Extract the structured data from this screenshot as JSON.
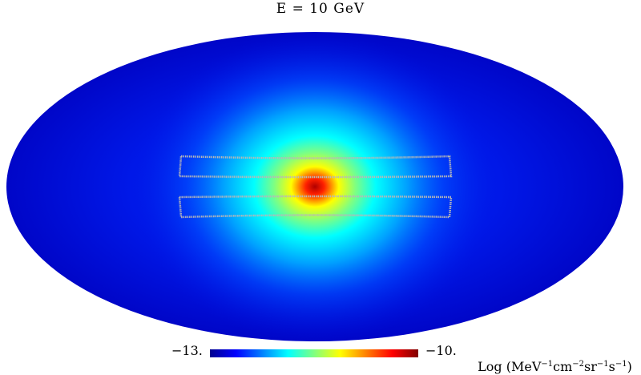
{
  "chart_data": {
    "type": "heatmap",
    "projection": "mollweide",
    "title": "E = 10 GeV",
    "colormap": "jet",
    "colorbar": {
      "min_label": "−13.",
      "max_label": "−10.",
      "unit": {
        "prefix": "Log (",
        "parts": [
          {
            "base": "MeV",
            "exp": "−1"
          },
          {
            "base": "cm",
            "exp": "−2"
          },
          {
            "base": "sr",
            "exp": "−1"
          },
          {
            "base": "s",
            "exp": "−1"
          }
        ],
        "suffix": ")"
      },
      "colors": [
        "#00008f",
        "#0000ff",
        "#0080ff",
        "#00ffff",
        "#80ff80",
        "#ffff00",
        "#ff8000",
        "#ff0000",
        "#800000"
      ]
    },
    "grid": false,
    "legend": "none",
    "overlay_regions": [
      "upper band",
      "lower band"
    ],
    "overlay_color": "#b8b8b8"
  }
}
